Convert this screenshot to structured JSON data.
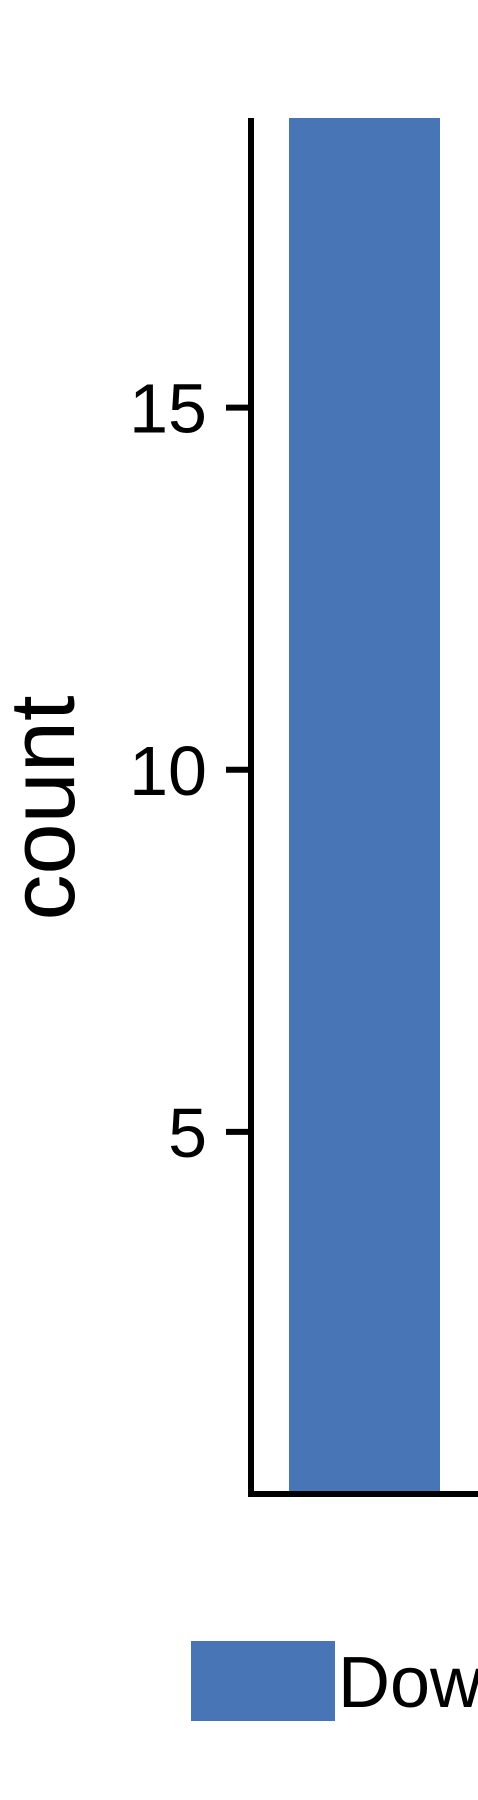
{
  "chart_data": {
    "type": "bar",
    "categories": [
      "Down"
    ],
    "series": [
      {
        "name": "Down",
        "values": [
          19
        ],
        "color": "#4775b5"
      }
    ],
    "ylabel": "count",
    "xlabel": "",
    "ylim": [
      0,
      19
    ],
    "yticks": [
      5,
      10,
      15
    ],
    "grid": false,
    "legend": "bottom"
  },
  "legend": {
    "entries": [
      {
        "label": "Down",
        "color": "#4775b5"
      }
    ]
  }
}
